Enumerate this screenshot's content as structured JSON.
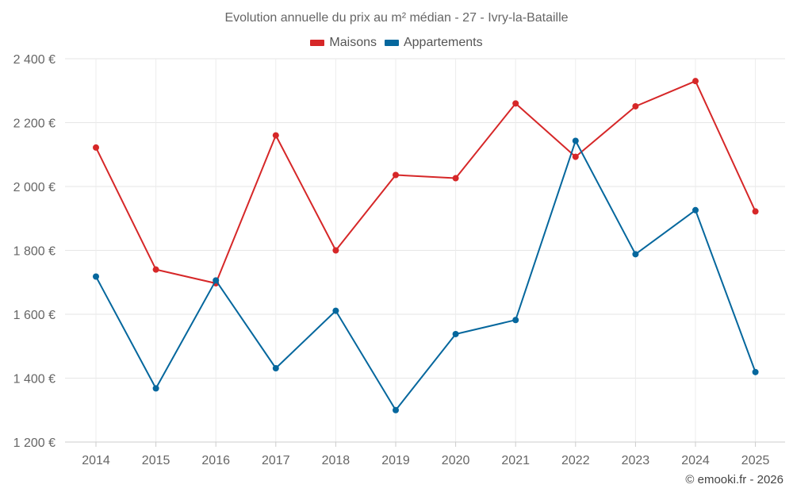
{
  "chart_data": {
    "type": "line",
    "title": "Evolution annuelle du prix au m² médian - 27 - Ivry-la-Bataille",
    "categories": [
      "2014",
      "2015",
      "2016",
      "2017",
      "2018",
      "2019",
      "2020",
      "2021",
      "2022",
      "2023",
      "2024",
      "2025"
    ],
    "series": [
      {
        "name": "Maisons",
        "color": "#d62728",
        "values": [
          2122,
          1740,
          1697,
          2160,
          1800,
          2036,
          2026,
          2260,
          2093,
          2251,
          2330,
          1922
        ]
      },
      {
        "name": "Appartements",
        "color": "#05679d",
        "values": [
          1718,
          1368,
          1706,
          1431,
          1611,
          1300,
          1538,
          1582,
          2143,
          1788,
          1926,
          1419
        ]
      }
    ],
    "ylim": [
      1200,
      2400
    ],
    "yticks": [
      1200,
      1400,
      1600,
      1800,
      2000,
      2200,
      2400
    ],
    "ytick_labels": [
      "1 200 €",
      "1 400 €",
      "1 600 €",
      "1 800 €",
      "2 000 €",
      "2 200 €",
      "2 400 €"
    ],
    "xlabel": "",
    "ylabel": "",
    "grid": true,
    "legend_position": "top-center"
  },
  "credit": "© emooki.fr - 2026"
}
